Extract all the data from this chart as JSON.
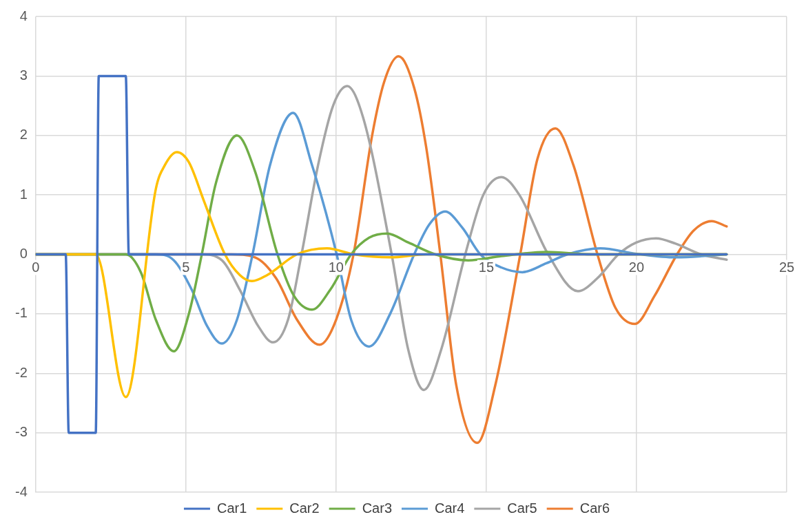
{
  "chart_data": {
    "type": "line",
    "xlim": [
      0,
      25
    ],
    "xticks": [
      0,
      5,
      10,
      15,
      20,
      25
    ],
    "ylim": [
      -4,
      4
    ],
    "yticks": [
      -4,
      -3,
      -2,
      -1,
      0,
      1,
      2,
      3,
      4
    ],
    "grid": true,
    "legend": "bottom",
    "marker": "none",
    "line_style": "solid",
    "series": [
      {
        "name": "Car1",
        "color": "#4472c4",
        "x": [
          0,
          1,
          1.1,
          2,
          2.1,
          3,
          3.1,
          23
        ],
        "values": [
          0,
          0,
          -3,
          -3,
          3,
          3,
          0,
          0
        ]
      },
      {
        "name": "Car2",
        "color": "#ffc000",
        "x": [
          0,
          2,
          3,
          4,
          4.3,
          4.7,
          5.1,
          5.6,
          6.3,
          6.8,
          7.2,
          7.7,
          8.7,
          9.7,
          10.6,
          11.8,
          13,
          23
        ],
        "values": [
          0,
          0,
          -2.4,
          1.1,
          1.5,
          1.72,
          1.55,
          0.9,
          0,
          -0.35,
          -0.45,
          -0.35,
          0,
          0.1,
          0,
          -0.05,
          0,
          0
        ]
      },
      {
        "name": "Car3",
        "color": "#70ad47",
        "x": [
          0,
          3,
          3.5,
          4,
          4.6,
          5.1,
          5.53,
          6,
          6.7,
          7.3,
          8.05,
          8.6,
          9.2,
          9.8,
          10.5,
          11.1,
          11.7,
          12.4,
          13.3,
          14.4,
          15.5,
          17,
          18.5,
          23
        ],
        "values": [
          0,
          0,
          -0.3,
          -1.1,
          -1.63,
          -1,
          0,
          1.2,
          2,
          1.4,
          0,
          -0.7,
          -0.93,
          -0.6,
          0,
          0.28,
          0.35,
          0.2,
          0,
          -0.1,
          -0.03,
          0.04,
          0,
          0
        ]
      },
      {
        "name": "Car4",
        "color": "#5b9bd5",
        "x": [
          0,
          4,
          4.6,
          5.2,
          5.7,
          6.2,
          6.7,
          7.22,
          7.8,
          8.57,
          9.2,
          10.02,
          10.5,
          11.1,
          11.8,
          12.6,
          13.1,
          13.63,
          14.2,
          14.8,
          15.5,
          16.2,
          17,
          17.7,
          18.8,
          20,
          21.3,
          23
        ],
        "values": [
          0,
          0,
          -0.1,
          -0.6,
          -1.2,
          -1.5,
          -1.1,
          0,
          1.5,
          2.38,
          1.5,
          0,
          -1.1,
          -1.55,
          -1,
          0,
          0.5,
          0.72,
          0.45,
          0,
          -0.22,
          -0.3,
          -0.15,
          0,
          0.1,
          0.01,
          -0.05,
          0
        ]
      },
      {
        "name": "Car5",
        "color": "#a5a5a5",
        "x": [
          0,
          5.5,
          6.2,
          6.8,
          7.4,
          7.9,
          8.4,
          8.85,
          9.4,
          9.9,
          10.37,
          10.9,
          11.85,
          12.4,
          12.92,
          13.5,
          14.3,
          14.9,
          15.5,
          16.1,
          17.06,
          18.05,
          18.7,
          19.4,
          20,
          20.65,
          21.3,
          22.15,
          23
        ],
        "values": [
          0,
          0,
          -0.1,
          -0.6,
          -1.2,
          -1.48,
          -1.1,
          0,
          1.5,
          2.5,
          2.83,
          2.3,
          0,
          -1.6,
          -2.28,
          -1.6,
          0,
          1,
          1.3,
          1,
          0,
          -0.62,
          -0.4,
          0,
          0.2,
          0.27,
          0.18,
          0,
          -0.09
        ]
      },
      {
        "name": "Car6",
        "color": "#ed7d31",
        "x": [
          0,
          6.5,
          7.3,
          8,
          8.7,
          9.45,
          10,
          10.58,
          11.2,
          11.6,
          12.08,
          12.6,
          13,
          13.47,
          14,
          14.7,
          15.3,
          16.13,
          16.7,
          17.3,
          17.9,
          18.7,
          19.3,
          19.95,
          20.6,
          21.35,
          21.9,
          22.5,
          23
        ],
        "values": [
          0,
          0,
          -0.05,
          -0.4,
          -1.1,
          -1.52,
          -1.1,
          0,
          2,
          2.9,
          3.33,
          2.8,
          1.8,
          0,
          -2.2,
          -3.17,
          -2.2,
          0,
          1.6,
          2.12,
          1.5,
          0,
          -0.9,
          -1.17,
          -0.7,
          0,
          0.4,
          0.56,
          0.47
        ]
      }
    ]
  }
}
